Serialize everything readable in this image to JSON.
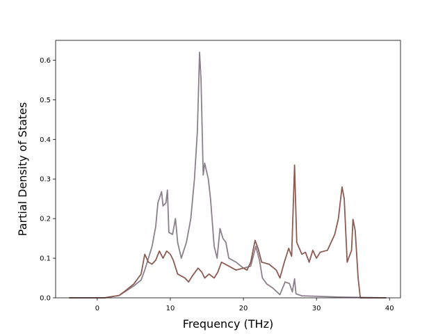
{
  "chart_data": {
    "type": "line",
    "title": "",
    "xlabel": "Frequency (THz)",
    "ylabel": "Partial Density of States",
    "xlim": [
      -5.7,
      41.5
    ],
    "ylim": [
      0,
      0.65
    ],
    "xticks": [
      0,
      10,
      20,
      30,
      40
    ],
    "yticks": [
      0.0,
      0.1,
      0.2,
      0.3,
      0.4,
      0.5,
      0.6
    ],
    "xtick_labels": [
      "0",
      "10",
      "20",
      "30",
      "40"
    ],
    "ytick_labels": [
      "0.0",
      "0.1",
      "0.2",
      "0.3",
      "0.4",
      "0.5",
      "0.6"
    ],
    "grid": false,
    "legend": "none",
    "series": [
      {
        "color": "#8c7f8c",
        "points": [
          [
            -3.8,
            0.0
          ],
          [
            1.0,
            0.0
          ],
          [
            2.0,
            0.003
          ],
          [
            3.0,
            0.006
          ],
          [
            4.0,
            0.018
          ],
          [
            5.0,
            0.03
          ],
          [
            6.0,
            0.045
          ],
          [
            6.5,
            0.07
          ],
          [
            7.0,
            0.1
          ],
          [
            7.5,
            0.13
          ],
          [
            8.0,
            0.18
          ],
          [
            8.3,
            0.24
          ],
          [
            8.8,
            0.268
          ],
          [
            9.0,
            0.232
          ],
          [
            9.4,
            0.24
          ],
          [
            9.6,
            0.272
          ],
          [
            9.8,
            0.165
          ],
          [
            10.3,
            0.16
          ],
          [
            10.7,
            0.2
          ],
          [
            11.0,
            0.14
          ],
          [
            11.5,
            0.1
          ],
          [
            12.2,
            0.14
          ],
          [
            12.8,
            0.2
          ],
          [
            13.3,
            0.3
          ],
          [
            13.7,
            0.42
          ],
          [
            14.0,
            0.62
          ],
          [
            14.2,
            0.55
          ],
          [
            14.5,
            0.31
          ],
          [
            14.7,
            0.34
          ],
          [
            15.2,
            0.3
          ],
          [
            15.5,
            0.25
          ],
          [
            16.0,
            0.13
          ],
          [
            16.4,
            0.1
          ],
          [
            16.8,
            0.175
          ],
          [
            17.2,
            0.15
          ],
          [
            17.6,
            0.14
          ],
          [
            18.0,
            0.1
          ],
          [
            19.0,
            0.09
          ],
          [
            20.0,
            0.075
          ],
          [
            21.0,
            0.08
          ],
          [
            21.7,
            0.13
          ],
          [
            22.2,
            0.095
          ],
          [
            22.6,
            0.05
          ],
          [
            23.2,
            0.035
          ],
          [
            24.0,
            0.025
          ],
          [
            25.0,
            0.008
          ],
          [
            25.7,
            0.04
          ],
          [
            26.3,
            0.036
          ],
          [
            26.7,
            0.015
          ],
          [
            27.0,
            0.048
          ],
          [
            27.2,
            0.01
          ],
          [
            28.0,
            0.005
          ],
          [
            30.0,
            0.004
          ],
          [
            33.0,
            0.002
          ],
          [
            36.0,
            0.001
          ],
          [
            39.5,
            0.0
          ]
        ]
      },
      {
        "color": "#8b5a52",
        "points": [
          [
            -3.8,
            0.0
          ],
          [
            1.0,
            0.0
          ],
          [
            2.0,
            0.003
          ],
          [
            3.0,
            0.006
          ],
          [
            4.0,
            0.02
          ],
          [
            5.0,
            0.035
          ],
          [
            6.0,
            0.06
          ],
          [
            6.5,
            0.11
          ],
          [
            7.0,
            0.09
          ],
          [
            7.5,
            0.085
          ],
          [
            8.0,
            0.095
          ],
          [
            8.5,
            0.118
          ],
          [
            9.0,
            0.1
          ],
          [
            9.5,
            0.118
          ],
          [
            10.0,
            0.11
          ],
          [
            10.4,
            0.095
          ],
          [
            11.0,
            0.06
          ],
          [
            12.0,
            0.05
          ],
          [
            12.5,
            0.04
          ],
          [
            13.0,
            0.055
          ],
          [
            13.8,
            0.075
          ],
          [
            14.3,
            0.065
          ],
          [
            14.7,
            0.05
          ],
          [
            15.3,
            0.06
          ],
          [
            16.0,
            0.05
          ],
          [
            16.5,
            0.065
          ],
          [
            17.0,
            0.09
          ],
          [
            18.0,
            0.08
          ],
          [
            19.0,
            0.07
          ],
          [
            20.0,
            0.075
          ],
          [
            20.5,
            0.07
          ],
          [
            21.0,
            0.09
          ],
          [
            21.6,
            0.145
          ],
          [
            22.0,
            0.125
          ],
          [
            22.5,
            0.09
          ],
          [
            23.5,
            0.085
          ],
          [
            24.5,
            0.07
          ],
          [
            25.0,
            0.05
          ],
          [
            25.6,
            0.09
          ],
          [
            26.2,
            0.125
          ],
          [
            26.6,
            0.105
          ],
          [
            27.0,
            0.335
          ],
          [
            27.3,
            0.14
          ],
          [
            28.0,
            0.11
          ],
          [
            28.5,
            0.115
          ],
          [
            29.0,
            0.09
          ],
          [
            29.5,
            0.12
          ],
          [
            30.0,
            0.1
          ],
          [
            30.5,
            0.115
          ],
          [
            31.5,
            0.12
          ],
          [
            32.5,
            0.16
          ],
          [
            33.0,
            0.2
          ],
          [
            33.5,
            0.28
          ],
          [
            33.8,
            0.25
          ],
          [
            34.2,
            0.09
          ],
          [
            34.8,
            0.12
          ],
          [
            35.0,
            0.198
          ],
          [
            35.3,
            0.17
          ],
          [
            35.7,
            0.05
          ],
          [
            36.0,
            0.0
          ],
          [
            39.5,
            0.0
          ]
        ]
      }
    ]
  }
}
